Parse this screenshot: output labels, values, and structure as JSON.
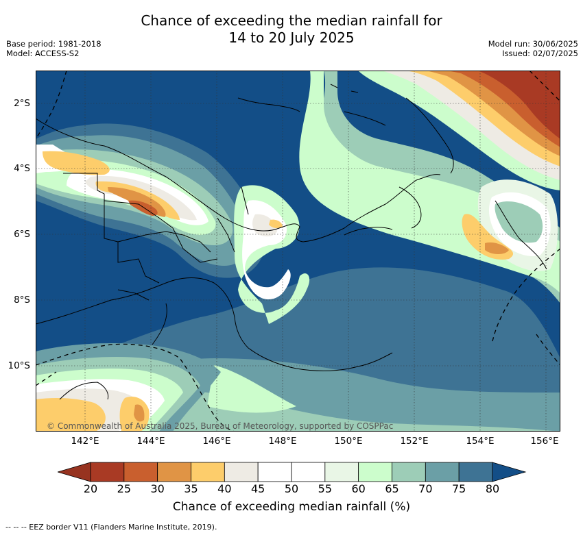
{
  "header": {
    "title_line1": "Chance of exceeding the median rainfall for",
    "title_line2": "14 to 20 July 2025",
    "base_period": "Base period: 1981-2018",
    "model": "Model: ACCESS-S2",
    "model_run": "Model run: 30/06/2025",
    "issued": "Issued: 02/07/2025"
  },
  "map": {
    "lat_labels": [
      "2°S",
      "4°S",
      "6°S",
      "8°S",
      "10°S"
    ],
    "lon_labels": [
      "142°E",
      "144°E",
      "146°E",
      "148°E",
      "150°E",
      "152°E",
      "154°E",
      "156°E"
    ],
    "copyright": "© Commonwealth of Australia 2025, Bureau of Meteorology, supported by COSPPac"
  },
  "colorbar": {
    "ticks": [
      "20",
      "25",
      "30",
      "35",
      "40",
      "45",
      "50",
      "55",
      "60",
      "65",
      "70",
      "75",
      "80"
    ],
    "colors": [
      "#a93a24",
      "#c95f2e",
      "#e09445",
      "#fdcd6b",
      "#eeebe4",
      "#ffffff",
      "#ffffff",
      "#e9f6e6",
      "#ccfdcc",
      "#9dcdb7",
      "#6b9fa6",
      "#3e7394"
    ],
    "low_extend_color": "#973320",
    "high_extend_color": "#134e87",
    "label": "Chance of exceeding median rainfall (%)"
  },
  "footnote": "--  --  -- EEZ border V11 (Flanders Marine Institute, 2019)."
}
